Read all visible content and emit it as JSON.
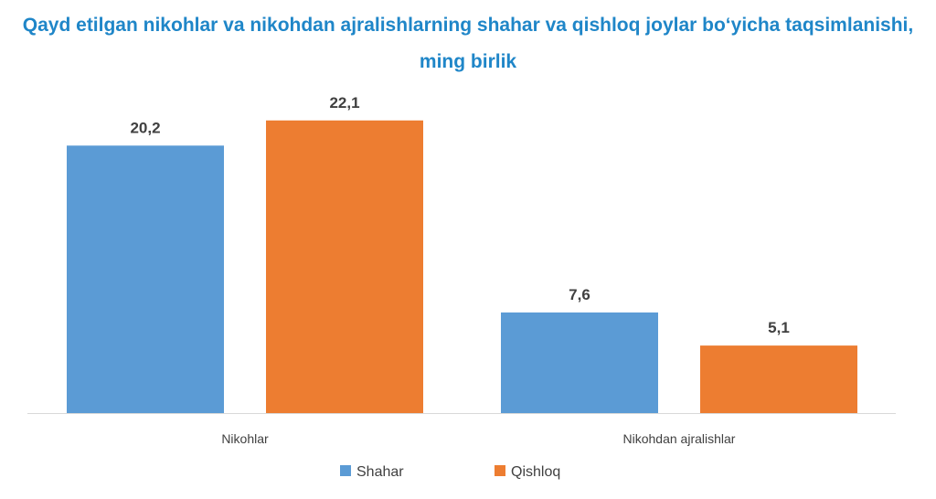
{
  "chart_data": {
    "type": "bar",
    "title_lines": [
      "Qayd etilgan nikohlar va nikohdan ajralishlarning shahar va qishloq joylar bo‘yicha taqsimlanishi,",
      "ming birlik"
    ],
    "categories": [
      "Nikohlar",
      "Nikohdan ajralishlar"
    ],
    "series": [
      {
        "name": "Shahar",
        "values": [
          20.2,
          7.6
        ],
        "labels": [
          "20,2",
          "7,6"
        ],
        "color": "#5b9bd5"
      },
      {
        "name": "Qishloq",
        "values": [
          22.1,
          5.1
        ],
        "labels": [
          "22,1",
          "5,1"
        ],
        "color": "#ed7d31"
      }
    ],
    "xlabel": "",
    "ylabel": "",
    "ylim": [
      0,
      24.5
    ],
    "grid": false,
    "legend_position": "bottom"
  }
}
